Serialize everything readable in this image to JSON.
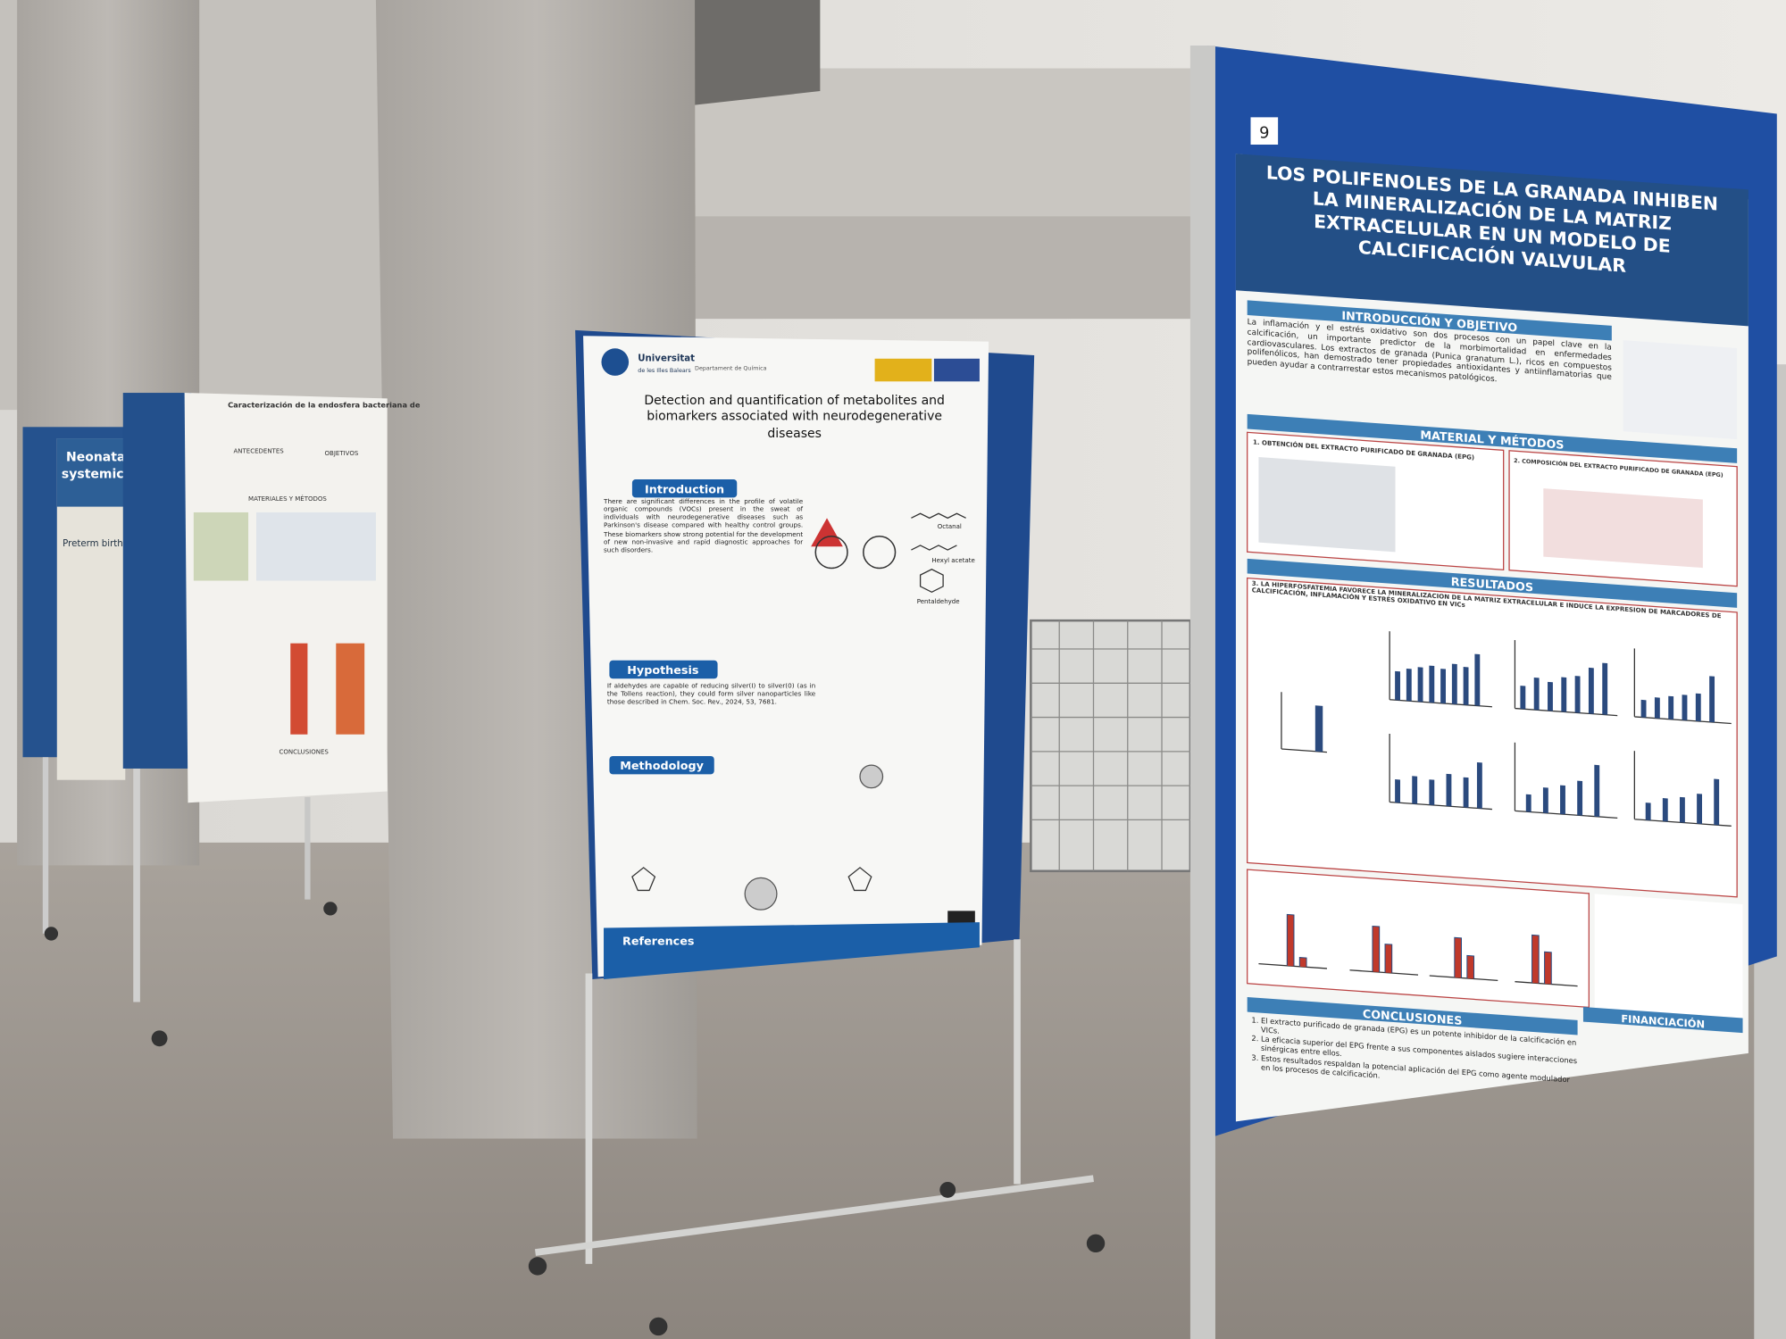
{
  "far_left_poster": {
    "title_lines": [
      "Neonatal",
      "systemic a"
    ],
    "label": "Preterm birth"
  },
  "left_poster": {
    "title": "Caracterización de la endosfera bacteriana de",
    "sections": [
      "ANTECEDENTES",
      "OBJETIVOS",
      "MATERIALES Y MÉTODOS",
      "CONCLUSIONES"
    ]
  },
  "center_poster": {
    "university": "Universitat",
    "university_sub": "de les Illes Balears",
    "department": "Departament de Química",
    "title": "Detection and quantification of metabolites and biomarkers associated with neurodegenerative diseases",
    "sections": [
      "Introduction",
      "Hypothesis",
      "Methodology",
      "References"
    ],
    "introduction_text": "There are significant differences in the profile of volatile organic compounds (VOCs) present in the sweat of individuals with neurodegenerative diseases such as Parkinson's disease compared with healthy control groups. These biomarkers show strong potential for the development of new non-invasive and rapid diagnostic approaches for such disorders.",
    "hypothesis_text": "If aldehydes are capable of reducing silver(I) to silver(0) (as in the Tollens reaction), they could form silver nanoparticles like those described in Chem. Soc. Rev., 2024, 53, 7681.",
    "molecules": [
      "Octanal",
      "Hexyl acetate",
      "Pentaldehyde"
    ]
  },
  "right_poster": {
    "board_number": "9",
    "title": "LOS POLIFENOLES DE LA GRANADA INHIBEN LA MINERALIZACIÓN DE LA MATRIZ EXTRACELULAR EN UN MODELO DE CALCIFICACIÓN VALVULAR",
    "sections": [
      "INTRODUCCIÓN Y OBJETIVO",
      "MATERIAL Y MÉTODOS",
      "RESULTADOS",
      "CONCLUSIONES",
      "FINANCIACIÓN"
    ],
    "introduction_text": "La inflamación y el estrés oxidativo son dos procesos con un papel clave en la calcificación, un importante predictor de la morbimortalidad en enfermedades cardiovasculares. Los extractos de granada (Punica granatum L.), ricos en compuestos polifenólicos, han demostrado tener propiedades antioxidantes y antiinflamatorias que pueden ayudar a contrarrestar estos mecanismos patológicos.",
    "methods_panels": [
      "1. OBTENCIÓN DEL EXTRACTO PURIFICADO DE GRANADA (EPG)",
      "2. COMPOSICIÓN DEL EXTRACTO PURIFICADO DE GRANADA (EPG)"
    ],
    "results_heading": "3. LA HIPERFOSFATEMIA FAVORECE LA MINERALIZACIÓN DE LA MATRIZ EXTRACELULAR E INDUCE LA EXPRESIÓN DE MARCADORES DE CALCIFICACIÓN, INFLAMACIÓN Y ESTRÉS OXIDATIVO EN VICs",
    "conclusions": [
      "El extracto purificado de granada (EPG) es un potente inhibidor de la calcificación en VICs.",
      "La eficacia superior del EPG frente a sus componentes aislados sugiere interacciones sinérgicas entre ellos.",
      "Estos resultados respaldan la potencial aplicación del EPG como agente modulador en los procesos de calcificación."
    ]
  }
}
